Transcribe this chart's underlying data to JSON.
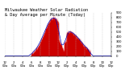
{
  "title": "Milwaukee Weather Solar Radiation",
  "subtitle": "& Day Average per Minute (Today)",
  "background_color": "#ffffff",
  "plot_bg_color": "#ffffff",
  "bar_color": "#cc0000",
  "line_color": "#0000bb",
  "legend_blue": "#0000cc",
  "legend_red": "#dd0000",
  "ylim": [
    0,
    900
  ],
  "xlim": [
    0,
    1440
  ],
  "grid_color": "#bbbbbb",
  "title_fontsize": 3.8,
  "tick_fontsize": 2.8,
  "ytick_fontsize": 2.8,
  "num_points": 1440,
  "ytick_step": 100,
  "xtick_step": 120,
  "seed": 42
}
